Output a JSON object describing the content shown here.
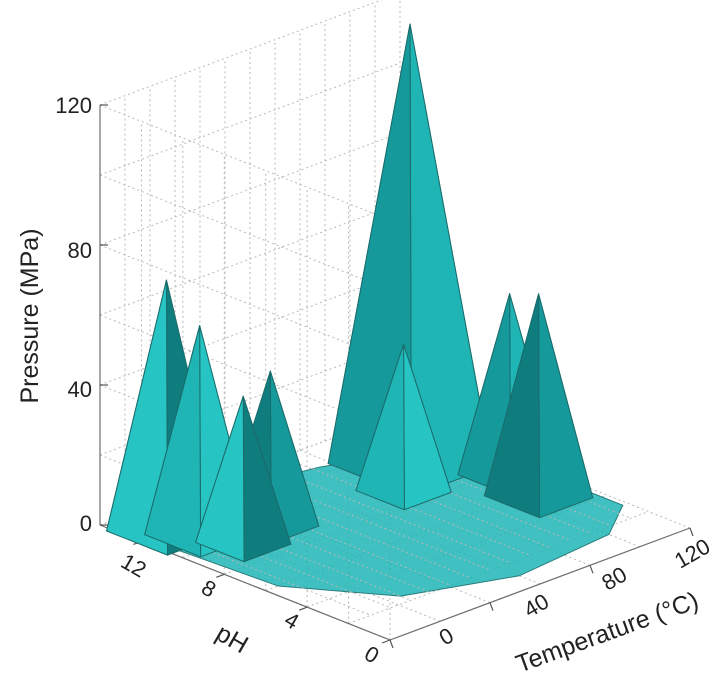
{
  "chart_data": {
    "type": "3d-surface",
    "axes": {
      "x": {
        "label": "Temperature (°C)",
        "ticks": [
          "0",
          "40",
          "80",
          "120"
        ],
        "range": [
          0,
          120
        ]
      },
      "y": {
        "label": "pH",
        "ticks": [
          "0",
          "4",
          "8",
          "12"
        ],
        "range": [
          0,
          14
        ]
      },
      "z": {
        "label": "Pressure (MPa)",
        "ticks": [
          "0",
          "40",
          "80",
          "120"
        ],
        "range": [
          0,
          120
        ]
      }
    },
    "grid": true,
    "color": "#1fb5b5",
    "peaks": [
      {
        "temperature": 10,
        "ph": 12,
        "pressure": 72
      },
      {
        "temperature": 15,
        "ph": 11,
        "pressure": 60
      },
      {
        "temperature": 20,
        "ph": 9.5,
        "pressure": 42
      },
      {
        "temperature": 35,
        "ph": 10,
        "pressure": 44
      },
      {
        "temperature": 80,
        "ph": 9,
        "pressure": 42
      },
      {
        "temperature": 95,
        "ph": 10.5,
        "pressure": 126
      },
      {
        "temperature": 105,
        "ph": 5.5,
        "pressure": 58
      },
      {
        "temperature": 110,
        "ph": 7.5,
        "pressure": 52
      }
    ]
  }
}
